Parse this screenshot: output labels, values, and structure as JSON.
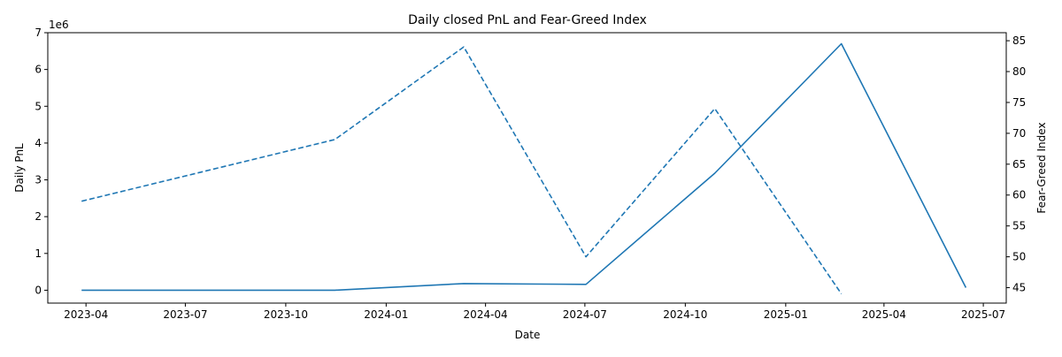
{
  "chart_data": {
    "type": "line",
    "title": "Daily closed PnL and Fear-Greed Index",
    "xlabel": "Date",
    "ylabel_left": "Daily PnL",
    "ylabel_right": "Fear-Greed Index",
    "left_axis_multiplier": "1e6",
    "x_ticks": [
      "2023-04",
      "2023-07",
      "2023-10",
      "2024-01",
      "2024-04",
      "2024-07",
      "2024-10",
      "2025-01",
      "2025-04",
      "2025-07"
    ],
    "y_left_ticks": [
      0,
      1,
      2,
      3,
      4,
      5,
      6,
      7
    ],
    "y_right_ticks": [
      45,
      50,
      55,
      60,
      65,
      70,
      75,
      80,
      85
    ],
    "xlim": [
      "2023-02-25",
      "2025-07-22"
    ],
    "ylim_left": [
      -0.35,
      7.0
    ],
    "ylim_right": [
      42.5,
      86.3
    ],
    "grid": false,
    "color": "#1f77b4",
    "series": [
      {
        "axis": "left",
        "linestyle": "solid",
        "points": [
          {
            "x": "2023-03-28",
            "y": 0.0
          },
          {
            "x": "2023-11-15",
            "y": 0.0
          },
          {
            "x": "2024-03-12",
            "y": 0.18
          },
          {
            "x": "2024-07-02",
            "y": 0.16
          },
          {
            "x": "2024-10-28",
            "y": 3.18
          },
          {
            "x": "2025-02-21",
            "y": 6.7
          },
          {
            "x": "2025-06-15",
            "y": 0.07
          }
        ]
      },
      {
        "axis": "right",
        "linestyle": "dashed",
        "points": [
          {
            "x": "2023-03-28",
            "y": 59
          },
          {
            "x": "2023-11-15",
            "y": 69
          },
          {
            "x": "2024-03-12",
            "y": 84
          },
          {
            "x": "2024-07-02",
            "y": 50
          },
          {
            "x": "2024-10-28",
            "y": 74
          },
          {
            "x": "2025-02-21",
            "y": 44
          }
        ]
      }
    ]
  }
}
